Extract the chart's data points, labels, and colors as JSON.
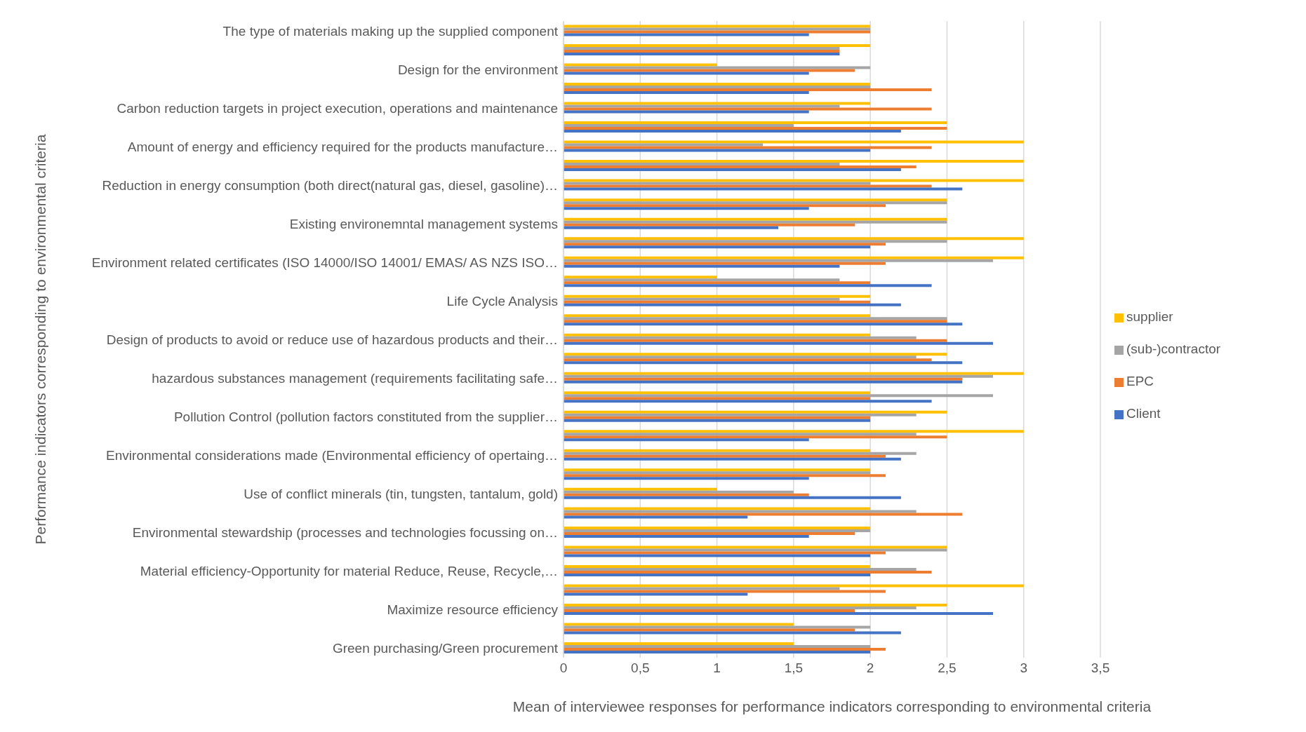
{
  "chart_data": {
    "type": "bar",
    "orientation": "horizontal",
    "ylabel": "Performance indicators corresponding to environmental criteria",
    "xlabel": "Mean of interviewee responses for performance indicators corresponding to environmental criteria",
    "categories": [
      "The type of materials making up the supplied component",
      null,
      "Design for the environment",
      null,
      "Carbon reduction targets in project execution, operations and maintenance",
      null,
      "Amount of energy and efficiency required for the products manufacture…",
      null,
      "Reduction in energy consumption (both direct(natural gas, diesel, gasoline)…",
      null,
      "Existing environemntal management systems",
      null,
      "Environment related certificates (ISO 14000/ISO 14001/ EMAS/ AS NZS ISO…",
      null,
      "Life Cycle Analysis",
      null,
      "Design of products to avoid or reduce use of hazardous products and their…",
      null,
      "hazardous substances management (requirements facilitating safe…",
      null,
      "Pollution Control (pollution factors constituted from the supplier…",
      null,
      "Environmental considerations made (Environmental efficiency of opertaing…",
      null,
      "Use of conflict minerals (tin, tungsten, tantalum, gold)",
      null,
      "Environmental stewardship (processes and technologies focussing on…",
      null,
      "Material efficiency-Opportunity for material Reduce, Reuse, Recycle,…",
      null,
      "Maximize resource efficiency",
      null,
      "Green purchasing/Green procurement"
    ],
    "series": [
      {
        "name": "supplier",
        "color": "#ffc000",
        "values": [
          2,
          2,
          1,
          2,
          2,
          2.5,
          3,
          3,
          3,
          2.5,
          2.5,
          3,
          3,
          1,
          2,
          2,
          2,
          2.5,
          3,
          2,
          2.5,
          3,
          2,
          2,
          1,
          2,
          2,
          2.5,
          2,
          3,
          2.5,
          1.5,
          1.5
        ]
      },
      {
        "name": "(sub-)contractor",
        "color": "#a5a5a5",
        "values": [
          2,
          1.8,
          2,
          2,
          1.8,
          1.5,
          1.3,
          1.8,
          2,
          2.5,
          2.5,
          2.5,
          2.8,
          1.8,
          1.8,
          2.5,
          2.3,
          2.3,
          2.8,
          2.8,
          2.3,
          2.3,
          2.3,
          2,
          1.5,
          2.3,
          2,
          2.5,
          2.3,
          1.8,
          2.3,
          2,
          2
        ]
      },
      {
        "name": "EPC",
        "color": "#ed7d31",
        "values": [
          2,
          1.8,
          1.9,
          2.4,
          2.4,
          2.5,
          2.4,
          2.3,
          2.4,
          2.1,
          1.9,
          2.1,
          2.1,
          2,
          2,
          2.5,
          2.5,
          2.4,
          2.6,
          2,
          2,
          2.5,
          2.1,
          2.1,
          1.6,
          2.6,
          1.9,
          2.1,
          2.4,
          2.1,
          1.9,
          1.9,
          2.1
        ]
      },
      {
        "name": "Client",
        "color": "#4472c4",
        "values": [
          1.6,
          1.8,
          1.6,
          1.6,
          1.6,
          2.2,
          2,
          2.2,
          2.6,
          1.6,
          1.4,
          2,
          1.8,
          2.4,
          2.2,
          2.6,
          2.8,
          2.6,
          2.6,
          2.4,
          2,
          1.6,
          2.2,
          1.6,
          2.2,
          1.2,
          1.6,
          2,
          2,
          1.2,
          2.8,
          2.2,
          2
        ]
      }
    ],
    "xlim": [
      0,
      3.5
    ],
    "xticks": [
      0,
      {
        "value": 0.5,
        "label": "0,5"
      },
      1,
      {
        "value": 1.5,
        "label": "1,5"
      },
      2,
      {
        "value": 2.5,
        "label": "2,5"
      },
      3,
      {
        "value": 3.5,
        "label": "3,5"
      }
    ],
    "grid": "x",
    "legend": "right"
  }
}
